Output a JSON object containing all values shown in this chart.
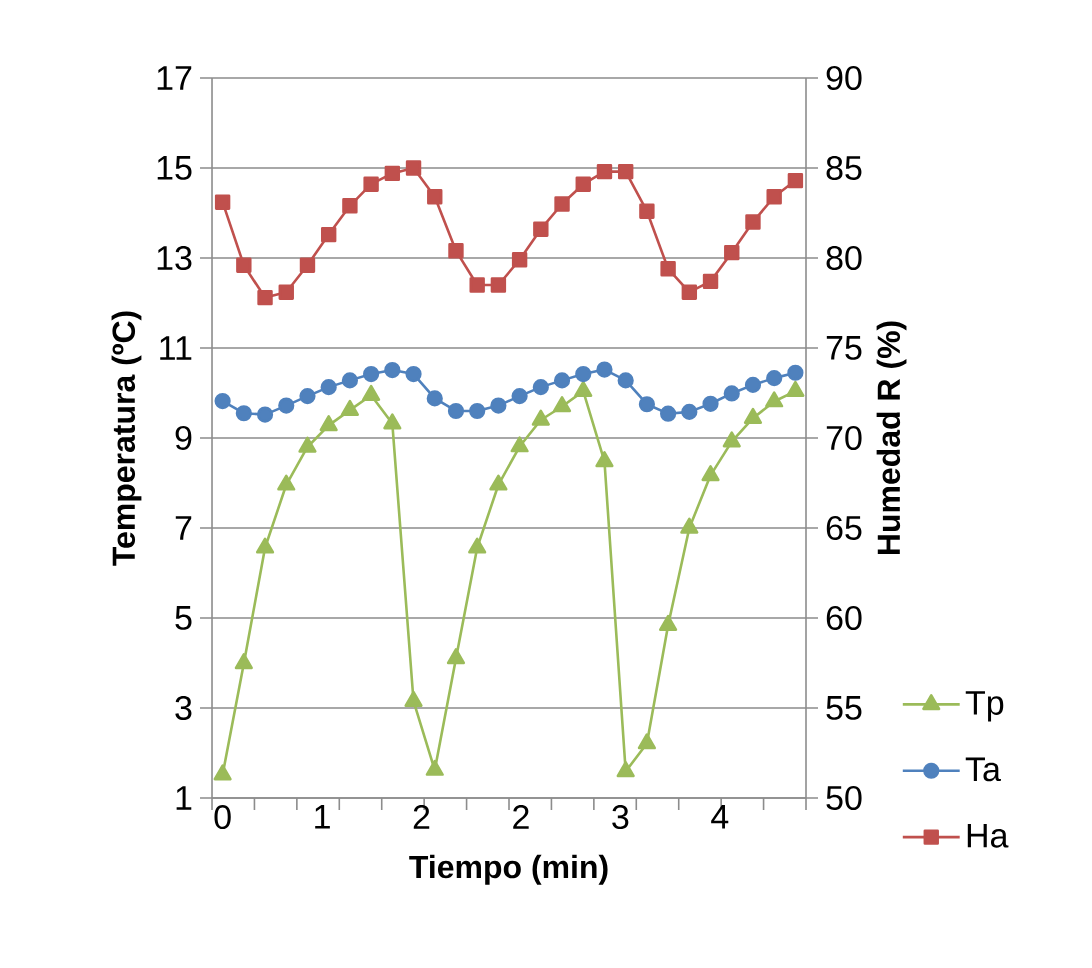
{
  "chart_data": {
    "type": "line",
    "xlabel": "Tiempo (min)",
    "ylabel": "Temperatura (ºC)",
    "y2label": "Humedad R (%)",
    "x": [
      0,
      0.16,
      0.32,
      0.48,
      0.64,
      0.8,
      0.96,
      1.12,
      1.28,
      1.44,
      1.6,
      1.76,
      1.92,
      2.08,
      2.24,
      2.4,
      2.56,
      2.72,
      2.88,
      3.04,
      3.2,
      3.36,
      3.52,
      3.68,
      3.84,
      4,
      4.16,
      4.32
    ],
    "xlim": [
      -0.08,
      4.4
    ],
    "xticks": [
      {
        "value": 0,
        "label": "0"
      },
      {
        "value": 0.75,
        "label": "1"
      },
      {
        "value": 1.5,
        "label": "2"
      },
      {
        "value": 2.25,
        "label": "2"
      },
      {
        "value": 3,
        "label": "3"
      },
      {
        "value": 3.75,
        "label": "4"
      },
      {
        "value": -0.08,
        "label": null
      },
      {
        "value": 0.24,
        "label": null
      },
      {
        "value": 0.56,
        "label": null
      },
      {
        "value": 0.88,
        "label": null
      },
      {
        "value": 1.2,
        "label": null
      },
      {
        "value": 1.52,
        "label": null
      },
      {
        "value": 1.84,
        "label": null
      },
      {
        "value": 2.16,
        "label": null
      },
      {
        "value": 2.48,
        "label": null
      },
      {
        "value": 2.8,
        "label": null
      },
      {
        "value": 3.12,
        "label": null
      },
      {
        "value": 3.44,
        "label": null
      },
      {
        "value": 3.76,
        "label": null
      },
      {
        "value": 4.08,
        "label": null
      },
      {
        "value": 4.4,
        "label": null
      }
    ],
    "ylim": [
      1,
      17
    ],
    "yticks": [
      1,
      3,
      5,
      7,
      9,
      11,
      13,
      15,
      17
    ],
    "y2lim": [
      50,
      90
    ],
    "y2ticks": [
      50,
      55,
      60,
      65,
      70,
      75,
      80,
      85,
      90
    ],
    "grid": "y",
    "legend": "right",
    "line_style": "solid",
    "series": [
      {
        "name": "Tp",
        "color": "#9bbb59",
        "marker": "triangle",
        "values": [
          1.52,
          3.99,
          6.56,
          7.96,
          8.8,
          9.28,
          9.62,
          9.95,
          9.32,
          3.15,
          1.62,
          4.1,
          6.56,
          7.96,
          8.81,
          9.4,
          9.7,
          10.04,
          8.48,
          1.59,
          2.21,
          4.84,
          7.0,
          8.17,
          8.92,
          9.44,
          9.81,
          10.04
        ]
      },
      {
        "name": "Ta",
        "color": "#4f81bd",
        "marker": "circle",
        "values": [
          9.82,
          9.55,
          9.52,
          9.72,
          9.93,
          10.13,
          10.28,
          10.42,
          10.51,
          10.42,
          9.88,
          9.6,
          9.6,
          9.72,
          9.93,
          10.13,
          10.28,
          10.42,
          10.52,
          10.28,
          9.75,
          9.54,
          9.58,
          9.76,
          9.99,
          10.18,
          10.33,
          10.45
        ]
      },
      {
        "name": "Ha",
        "color": "#c0504d",
        "marker": "square",
        "axis": "y2",
        "values": [
          83.1,
          79.6,
          77.8,
          78.1,
          79.6,
          81.3,
          82.9,
          84.1,
          84.7,
          85.0,
          83.4,
          80.4,
          78.5,
          78.5,
          79.9,
          81.6,
          83.0,
          84.1,
          84.8,
          84.8,
          82.6,
          79.4,
          78.1,
          78.7,
          80.3,
          82.0,
          83.4,
          84.3
        ]
      }
    ]
  }
}
